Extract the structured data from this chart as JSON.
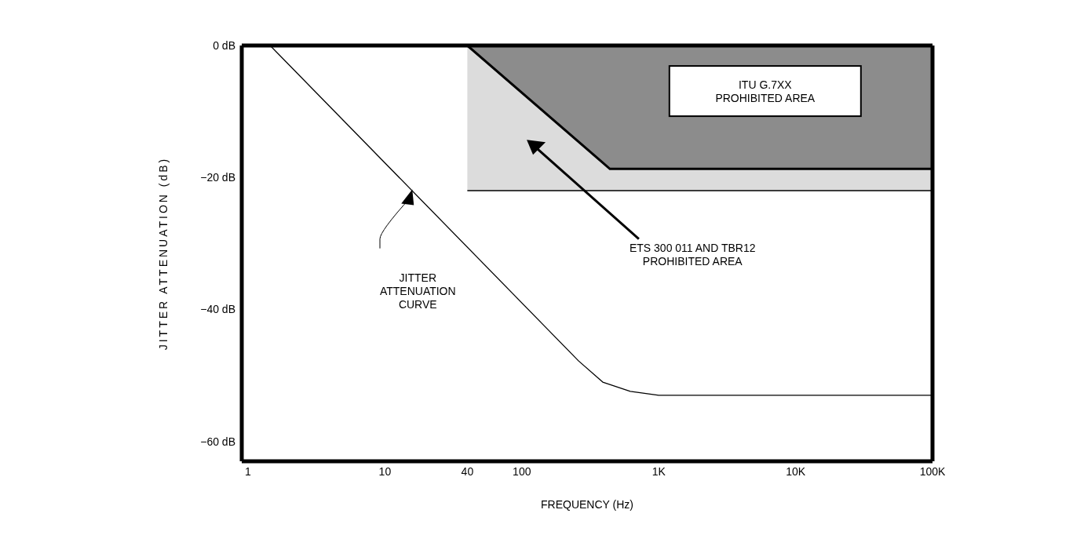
{
  "chart_data": {
    "type": "line",
    "xlabel": "FREQUENCY (Hz)",
    "ylabel": "JITTER ATTENUATION (dB)",
    "log": "x",
    "xlim": [
      0.9,
      100000
    ],
    "ylim": [
      -63,
      0
    ],
    "xticks": [
      1,
      10,
      40,
      100,
      {
        "value": 1000,
        "label": "1K"
      },
      {
        "value": 10000,
        "label": "10K"
      },
      {
        "value": 100000,
        "label": "100K"
      }
    ],
    "yticks": [
      {
        "value": 0,
        "label": "0 dB"
      },
      {
        "value": -20,
        "label": "−20 dB"
      },
      {
        "value": -40,
        "label": "−40 dB"
      },
      {
        "value": -60,
        "label": "−60 dB"
      }
    ],
    "grid": false,
    "legend": false,
    "marker": "none",
    "line_style": "solid",
    "series": [
      {
        "type": "area",
        "color": "#dcdcdc",
        "x": [
          40,
          100000
        ],
        "values": [
          -22,
          -22
        ]
      },
      {
        "type": "area",
        "color": "#8c8c8c",
        "x": [
          40,
          440,
          100000
        ],
        "values": [
          0,
          -18.7,
          -18.7
        ]
      },
      {
        "color": "#000000",
        "x": [
          1.45,
          260,
          390,
          620,
          1000,
          100000
        ],
        "values": [
          0,
          -47.8,
          -51,
          -52.4,
          -53,
          -53
        ]
      }
    ],
    "annotations": [
      "ITU G.7XX\nPROHIBITED AREA",
      "ETS 300 011 AND TBR12\nPROHIBITED AREA",
      "JITTER\nATTENUATION\nCURVE"
    ]
  }
}
